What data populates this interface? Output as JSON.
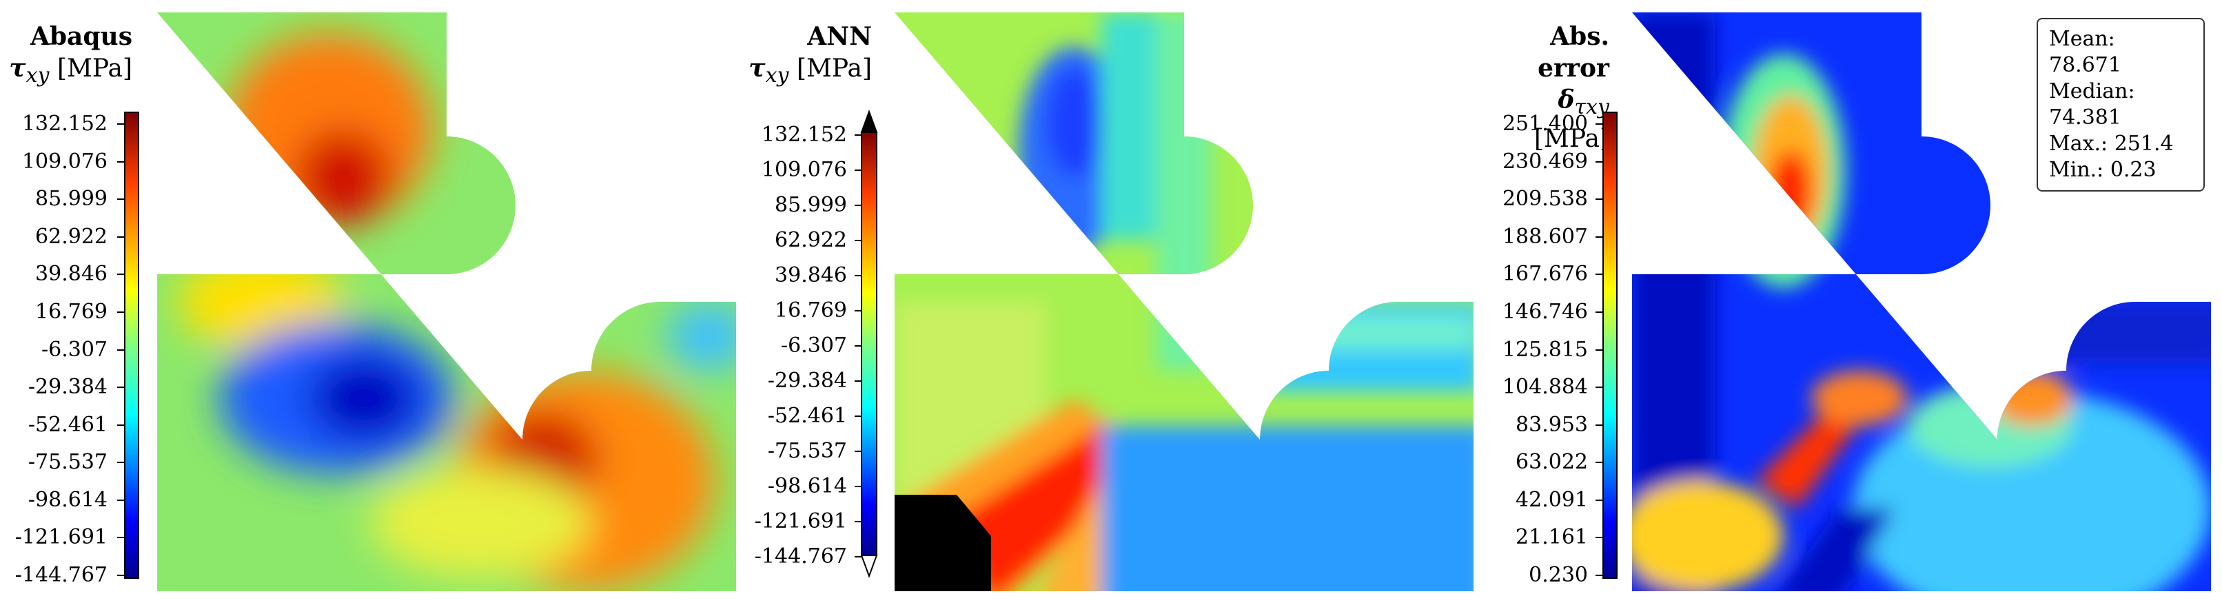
{
  "panels": [
    {
      "title": "Abaqus",
      "quantity": "τ",
      "quantity_sub": "xy",
      "unit": "[MPa]",
      "colorbar_ticks": [
        "132.152",
        "109.076",
        "85.999",
        "62.922",
        "39.846",
        "16.769",
        "-6.307",
        "-29.384",
        "-52.461",
        "-75.537",
        "-98.614",
        "-121.691",
        "-144.767"
      ]
    },
    {
      "title": "ANN",
      "quantity": "τ",
      "quantity_sub": "xy",
      "unit": "[MPa]",
      "colorbar_ticks": [
        "132.152",
        "109.076",
        "85.999",
        "62.922",
        "39.846",
        "16.769",
        "-6.307",
        "-29.384",
        "-52.461",
        "-75.537",
        "-98.614",
        "-121.691",
        "-144.767"
      ]
    },
    {
      "title": "Abs. error",
      "quantity": "δ",
      "quantity_sub": "τxy",
      "unit": "[MPa]",
      "colorbar_ticks": [
        "251.400",
        "230.469",
        "209.538",
        "188.607",
        "167.676",
        "146.746",
        "125.815",
        "104.884",
        "83.953",
        "63.022",
        "42.091",
        "21.161",
        "0.230"
      ]
    }
  ],
  "stats": {
    "mean": "Mean: 78.671",
    "median": "Median: 74.381",
    "max": "Max.: 251.4",
    "min": "Min.: 0.23"
  },
  "colors": {
    "jet": [
      "#00008f",
      "#0000ff",
      "#0080ff",
      "#00ffff",
      "#80ff80",
      "#ffff00",
      "#ff8000",
      "#ff0000",
      "#800000"
    ],
    "background_field": "#8ce86a"
  }
}
